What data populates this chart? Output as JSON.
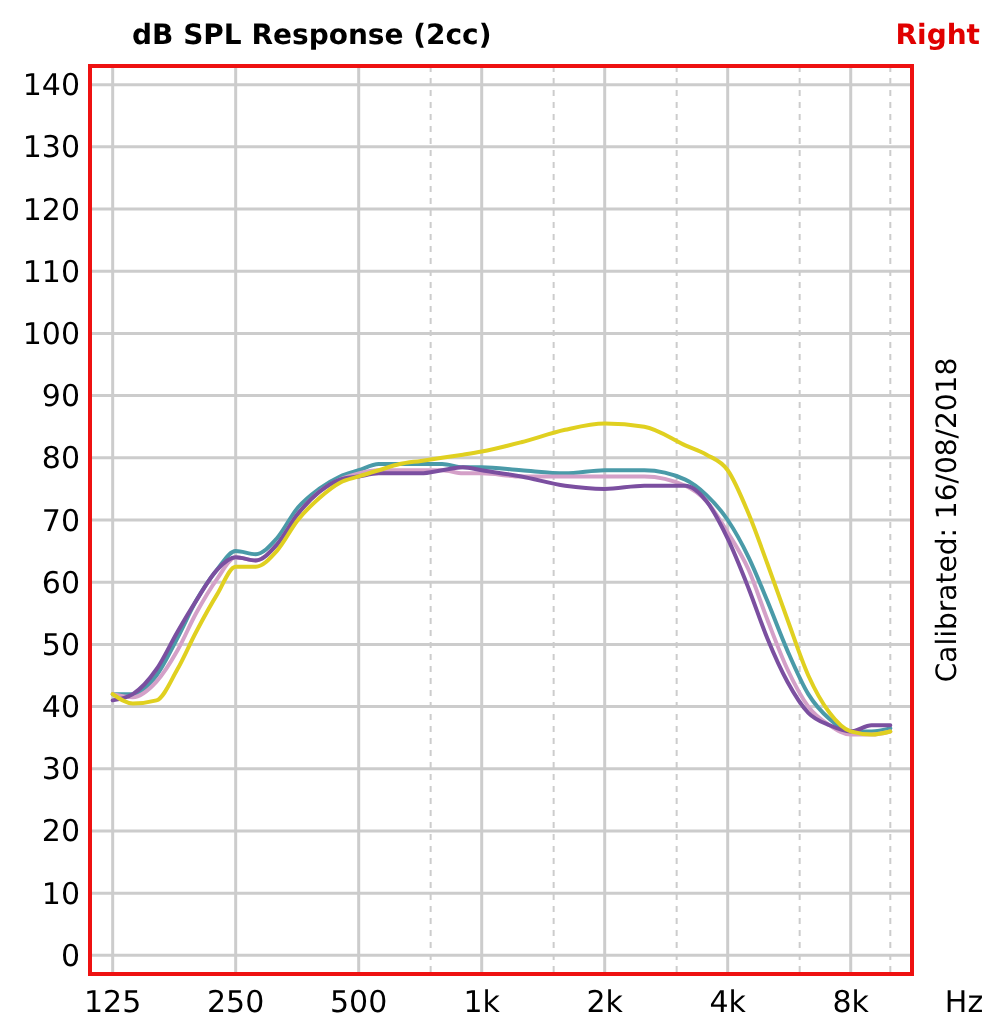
{
  "chart_data": {
    "type": "line",
    "title": "dB SPL Response (2cc)",
    "subtitle": "Right",
    "xlabel": "Hz",
    "annotations": [
      "Calibrated: 16/08/2018"
    ],
    "x": [
      125,
      140,
      160,
      180,
      200,
      225,
      250,
      280,
      315,
      355,
      400,
      450,
      500,
      560,
      630,
      710,
      800,
      900,
      1000,
      1250,
      1600,
      2000,
      2500,
      3150,
      3550,
      4000,
      4500,
      5000,
      5600,
      6300,
      7100,
      8000,
      9000,
      10000
    ],
    "series": [
      {
        "color": "#4a9aa8",
        "values": [
          42,
          42,
          45,
          51,
          57,
          62,
          65,
          64.5,
          67,
          72,
          75,
          77,
          78,
          79,
          79,
          79,
          79,
          78.5,
          78.5,
          78,
          77.5,
          78,
          78,
          76.5,
          74,
          70,
          64,
          57,
          49,
          42,
          38,
          36,
          36,
          36.5
        ]
      },
      {
        "color": "#d4a0c8",
        "values": [
          42,
          41.5,
          44,
          49,
          55,
          60.5,
          64,
          63.5,
          66,
          71,
          74.5,
          76.5,
          77.5,
          78,
          78,
          78,
          78,
          77.5,
          77.5,
          77,
          77,
          77,
          77,
          75.5,
          73,
          68,
          62,
          54,
          46,
          40,
          37,
          35.5,
          35.5,
          36
        ]
      },
      {
        "color": "#7b4fa0",
        "values": [
          41,
          42,
          46,
          52,
          57,
          62,
          64,
          63.5,
          66,
          71,
          74.5,
          76.5,
          77,
          77.5,
          77.5,
          77.5,
          78,
          78.5,
          78,
          77,
          75.5,
          75,
          75.5,
          75.5,
          73,
          67,
          59,
          51,
          44,
          39,
          37,
          36,
          37,
          37
        ]
      },
      {
        "color": "#e0d020",
        "values": [
          42,
          40.5,
          41,
          46,
          52,
          58,
          62.5,
          62.5,
          65,
          70,
          73.5,
          76,
          77,
          78,
          79,
          79.5,
          80,
          80.5,
          81,
          82.5,
          84.5,
          85.5,
          85,
          82,
          80.5,
          78,
          71,
          63,
          54,
          45,
          39,
          36,
          35.5,
          36
        ]
      }
    ],
    "log": "x",
    "xlim": [
      110,
      11300
    ],
    "xticks": [
      125,
      250,
      500,
      {
        "value": 1000,
        "label": "1k"
      },
      {
        "value": 2000,
        "label": "2k"
      },
      {
        "value": 4000,
        "label": "4k"
      },
      {
        "value": 8000,
        "label": "8k"
      },
      {
        "value": 750,
        "label": null
      },
      {
        "value": 1500,
        "label": null
      },
      {
        "value": 3000,
        "label": null
      },
      {
        "value": 6000,
        "label": null
      },
      {
        "value": 10000,
        "label": null
      }
    ],
    "ylim": [
      -3,
      143
    ],
    "yticks": [
      0,
      10,
      20,
      30,
      40,
      50,
      60,
      70,
      80,
      90,
      100,
      110,
      120,
      130,
      140
    ],
    "grid": true,
    "line_style": "solid",
    "marker": "none"
  }
}
